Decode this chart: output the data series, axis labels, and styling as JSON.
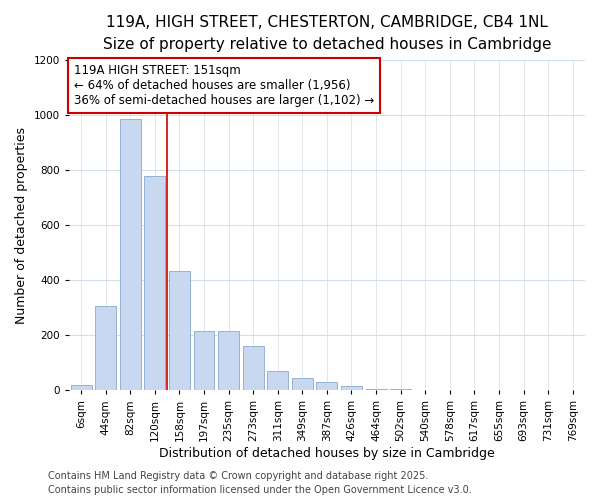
{
  "title": "119A, HIGH STREET, CHESTERTON, CAMBRIDGE, CB4 1NL",
  "subtitle": "Size of property relative to detached houses in Cambridge",
  "xlabel": "Distribution of detached houses by size in Cambridge",
  "ylabel": "Number of detached properties",
  "categories": [
    "6sqm",
    "44sqm",
    "82sqm",
    "120sqm",
    "158sqm",
    "197sqm",
    "235sqm",
    "273sqm",
    "311sqm",
    "349sqm",
    "387sqm",
    "426sqm",
    "464sqm",
    "502sqm",
    "540sqm",
    "578sqm",
    "617sqm",
    "655sqm",
    "693sqm",
    "731sqm",
    "769sqm"
  ],
  "values": [
    20,
    305,
    985,
    780,
    435,
    215,
    215,
    160,
    70,
    45,
    30,
    15,
    5,
    3,
    2,
    1,
    0,
    0,
    0,
    0,
    2
  ],
  "bar_color": "#c8d8f0",
  "bar_edge_color": "#88aad0",
  "vline_x": 3.5,
  "vline_color": "#cc0000",
  "annotation_box_text": "119A HIGH STREET: 151sqm\n← 64% of detached houses are smaller (1,956)\n36% of semi-detached houses are larger (1,102) →",
  "ylim": [
    0,
    1200
  ],
  "yticks": [
    0,
    200,
    400,
    600,
    800,
    1000,
    1200
  ],
  "footer_line1": "Contains HM Land Registry data © Crown copyright and database right 2025.",
  "footer_line2": "Contains public sector information licensed under the Open Government Licence v3.0.",
  "background_color": "#ffffff",
  "plot_bg_color": "#ffffff",
  "title_fontsize": 11,
  "subtitle_fontsize": 9.5,
  "axis_label_fontsize": 9,
  "tick_fontsize": 7.5,
  "annotation_fontsize": 8.5,
  "footer_fontsize": 7
}
